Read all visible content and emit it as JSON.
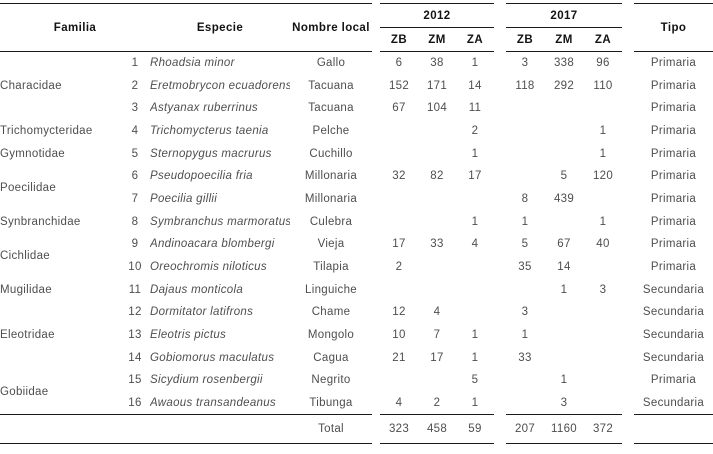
{
  "table": {
    "headers": {
      "familia": "Familia",
      "especie": "Especie",
      "nombre_local": "Nombre local",
      "year_2012": "2012",
      "year_2017": "2017",
      "zones": [
        "ZB",
        "ZM",
        "ZA"
      ],
      "tipo": "Tipo"
    },
    "rows": [
      {
        "familia": "Characidae",
        "familia_span": 3,
        "num": "1",
        "especie": "Rhoadsia minor",
        "nombre": "Gallo",
        "v": [
          "6",
          "38",
          "1",
          "3",
          "338",
          "96"
        ],
        "tipo": "Primaria"
      },
      {
        "num": "2",
        "especie": "Eretmobrycon ecuadorensis",
        "nombre": "Tacuana",
        "v": [
          "152",
          "171",
          "14",
          "118",
          "292",
          "110"
        ],
        "tipo": "Primaria"
      },
      {
        "num": "3",
        "especie": "Astyanax ruberrinus",
        "nombre": "Tacuana",
        "v": [
          "67",
          "104",
          "11",
          "",
          "",
          ""
        ],
        "tipo": "Primaria"
      },
      {
        "familia": "Trichomycteridae",
        "familia_span": 1,
        "num": "4",
        "especie": "Trichomycterus taenia",
        "nombre": "Pelche",
        "v": [
          "",
          "",
          "2",
          "",
          "",
          "1"
        ],
        "tipo": "Primaria"
      },
      {
        "familia": "Gymnotidae",
        "familia_span": 1,
        "num": "5",
        "especie": "Sternopygus macrurus",
        "nombre": "Cuchillo",
        "v": [
          "",
          "",
          "1",
          "",
          "",
          "1"
        ],
        "tipo": "Primaria"
      },
      {
        "familia": "Poecilidae",
        "familia_span": 2,
        "num": "6",
        "especie": "Pseudopoecilia fria",
        "nombre": "Millonaria",
        "v": [
          "32",
          "82",
          "17",
          "",
          "5",
          "120"
        ],
        "tipo": "Primaria"
      },
      {
        "num": "7",
        "especie": "Poecilia gillii",
        "nombre": "Millonaria",
        "v": [
          "",
          "",
          "",
          "8",
          "439",
          ""
        ],
        "tipo": "Primaria"
      },
      {
        "familia": "Synbranchidae",
        "familia_span": 1,
        "num": "8",
        "especie": "Symbranchus marmoratus",
        "nombre": "Culebra",
        "v": [
          "",
          "",
          "1",
          "1",
          "",
          "1"
        ],
        "tipo": "Primaria"
      },
      {
        "familia": "Cichlidae",
        "familia_span": 2,
        "num": "9",
        "especie": "Andinoacara blombergi",
        "nombre": "Vieja",
        "v": [
          "17",
          "33",
          "4",
          "5",
          "67",
          "40"
        ],
        "tipo": "Primaria"
      },
      {
        "num": "10",
        "especie": "Oreochromis niloticus",
        "nombre": "Tilapia",
        "v": [
          "2",
          "",
          "",
          "35",
          "14",
          ""
        ],
        "tipo": "Primaria"
      },
      {
        "familia": "Mugilidae",
        "familia_span": 1,
        "num": "11",
        "especie": "Dajaus monticola",
        "nombre": "Linguiche",
        "v": [
          "",
          "",
          "",
          "",
          "1",
          "3"
        ],
        "tipo": "Secundaria"
      },
      {
        "familia": "Eleotridae",
        "familia_span": 3,
        "num": "12",
        "especie": "Dormitator latifrons",
        "nombre": "Chame",
        "v": [
          "12",
          "4",
          "",
          "3",
          "",
          ""
        ],
        "tipo": "Secundaria"
      },
      {
        "num": "13",
        "especie": "Eleotris pictus",
        "nombre": "Mongolo",
        "v": [
          "10",
          "7",
          "1",
          "1",
          "",
          ""
        ],
        "tipo": "Secundaria"
      },
      {
        "num": "14",
        "especie": "Gobiomorus maculatus",
        "nombre": "Cagua",
        "v": [
          "21",
          "17",
          "1",
          "33",
          "",
          ""
        ],
        "tipo": "Secundaria"
      },
      {
        "familia": "Gobiidae",
        "familia_span": 2,
        "num": "15",
        "especie": "Sicydium rosenbergii",
        "nombre": "Negrito",
        "v": [
          "",
          "",
          "5",
          "",
          "1",
          ""
        ],
        "tipo": "Primaria"
      },
      {
        "num": "16",
        "especie": "Awaous transandeanus",
        "nombre": "Tibunga",
        "v": [
          "4",
          "2",
          "1",
          "",
          "3",
          ""
        ],
        "tipo": "Secundaria"
      }
    ],
    "total": {
      "label": "Total",
      "v": [
        "323",
        "458",
        "59",
        "207",
        "1160",
        "372"
      ]
    }
  }
}
